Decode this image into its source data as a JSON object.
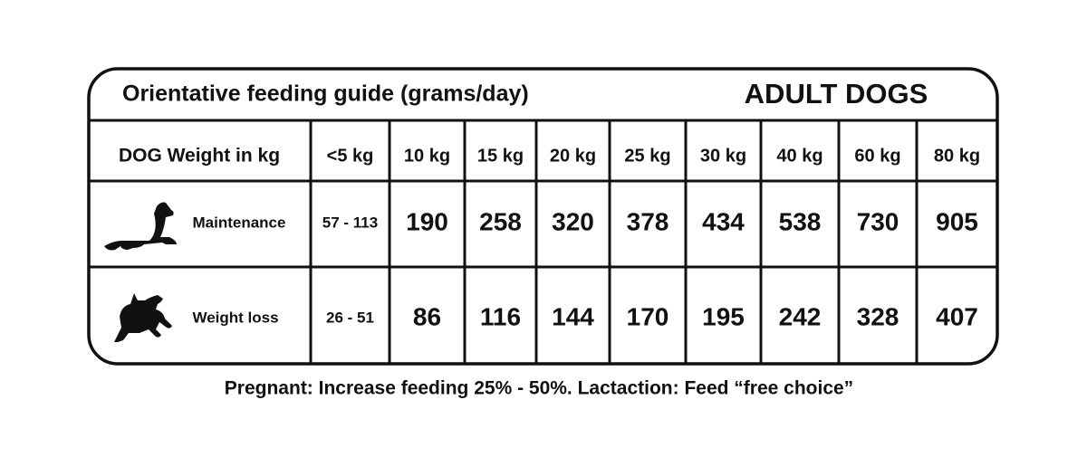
{
  "header": {
    "title": "Orientative feeding guide (grams/day)",
    "subtitle": "ADULT DOGS"
  },
  "table": {
    "columns": [
      "DOG Weight in kg",
      "<5 kg",
      "10 kg",
      "15 kg",
      "20 kg",
      "25 kg",
      "30 kg",
      "40 kg",
      "60 kg",
      "80 kg"
    ],
    "rows": [
      [
        "Maintenance",
        "57 - 113",
        190,
        258,
        320,
        378,
        434,
        538,
        730,
        905
      ],
      [
        "Weight loss",
        "26 - 51",
        86,
        116,
        144,
        170,
        195,
        242,
        328,
        407
      ]
    ]
  },
  "footnote": "Pregnant: Increase feeding 25% - 50%. Lactaction: Feed “free choice”"
}
